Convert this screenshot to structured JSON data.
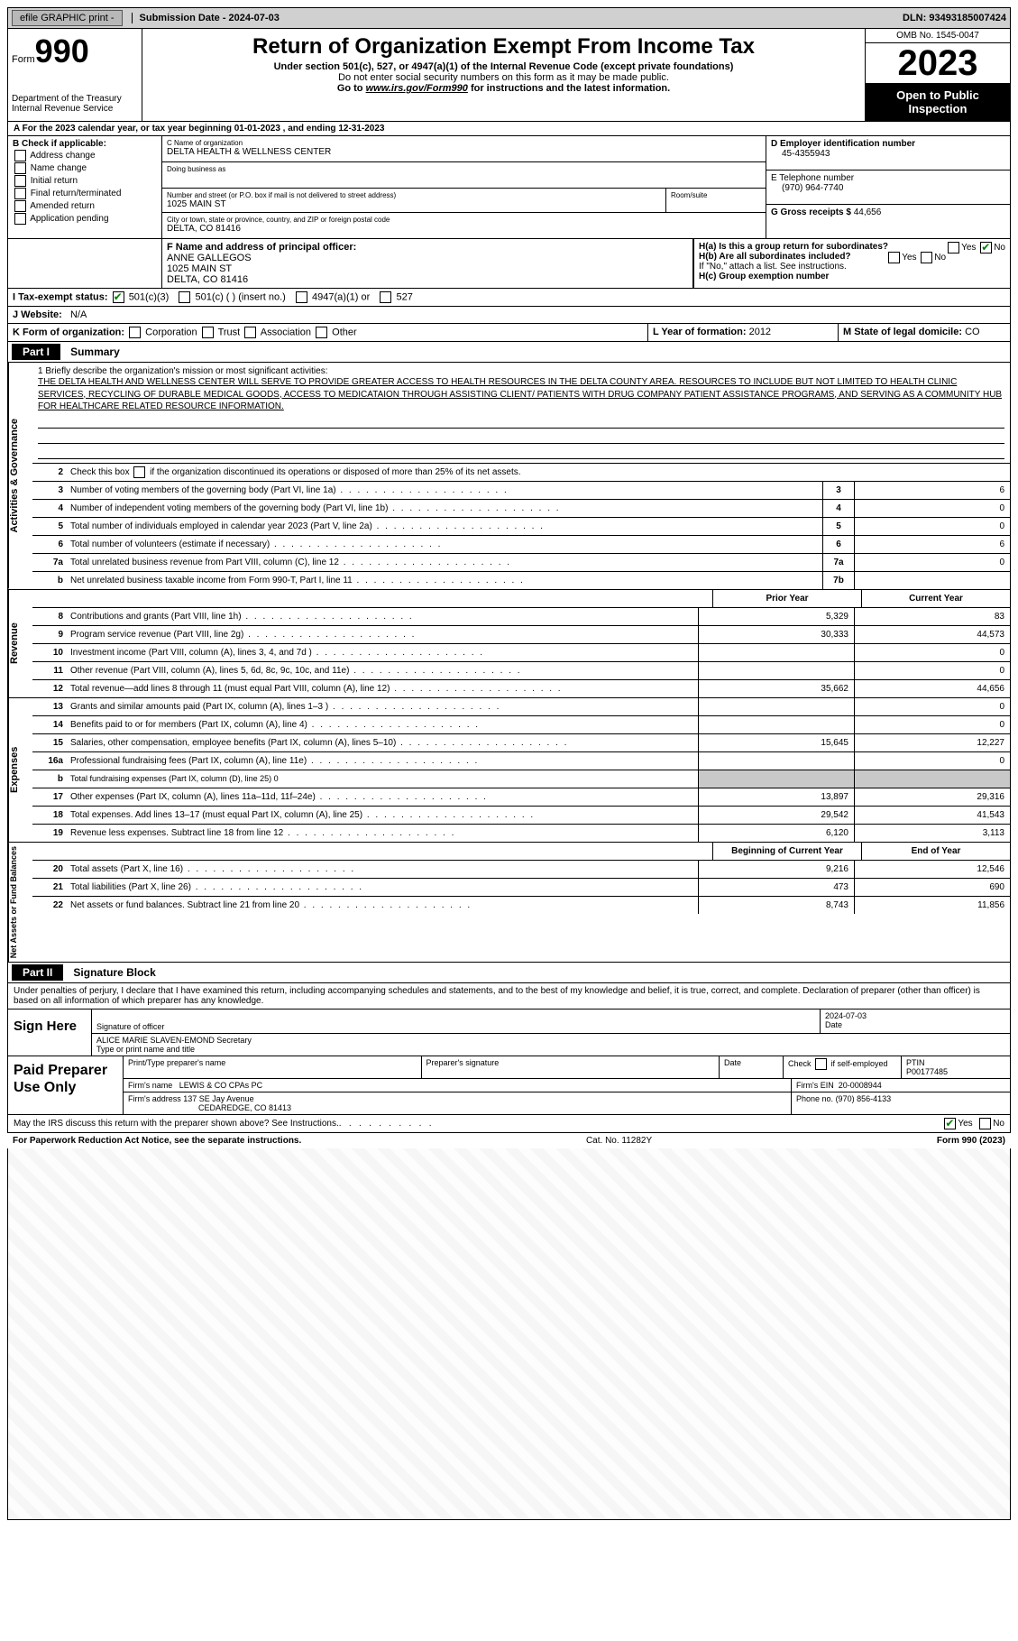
{
  "topbar": {
    "efile": "efile GRAPHIC print -",
    "submission": "Submission Date - 2024-07-03",
    "dln": "DLN: 93493185007424"
  },
  "header": {
    "form_label": "Form",
    "form_number": "990",
    "dept": "Department of the Treasury Internal Revenue Service",
    "title": "Return of Organization Exempt From Income Tax",
    "sub1": "Under section 501(c), 527, or 4947(a)(1) of the Internal Revenue Code (except private foundations)",
    "sub2": "Do not enter social security numbers on this form as it may be made public.",
    "sub3_pre": "Go to ",
    "sub3_link": "www.irs.gov/Form990",
    "sub3_post": " for instructions and the latest information.",
    "omb": "OMB No. 1545-0047",
    "year": "2023",
    "open": "Open to Public Inspection"
  },
  "yearline": "A For the 2023 calendar year, or tax year beginning 01-01-2023   , and ending 12-31-2023",
  "boxB": {
    "label": "B Check if applicable:",
    "opts": [
      "Address change",
      "Name change",
      "Initial return",
      "Final return/terminated",
      "Amended return",
      "Application pending"
    ]
  },
  "boxC": {
    "name_lbl": "C Name of organization",
    "name": "DELTA HEALTH & WELLNESS CENTER",
    "dba_lbl": "Doing business as",
    "addr_lbl": "Number and street (or P.O. box if mail is not delivered to street address)",
    "room_lbl": "Room/suite",
    "addr": "1025 MAIN ST",
    "city_lbl": "City or town, state or province, country, and ZIP or foreign postal code",
    "city": "DELTA, CO  81416"
  },
  "boxD": {
    "ein_lbl": "D Employer identification number",
    "ein": "45-4355943",
    "phone_lbl": "E Telephone number",
    "phone": "(970) 964-7740",
    "gross_lbl": "G Gross receipts $",
    "gross": "44,656"
  },
  "boxF": {
    "lbl": "F Name and address of principal officer:",
    "line1": "ANNE GALLEGOS",
    "line2": "1025 MAIN ST",
    "line3": "DELTA, CO  81416"
  },
  "boxH": {
    "a": "H(a)  Is this a group return for subordinates?",
    "b": "H(b)  Are all subordinates included?",
    "note": "If \"No,\" attach a list. See instructions.",
    "c": "H(c)  Group exemption number",
    "yes": "Yes",
    "no": "No"
  },
  "boxI": {
    "lbl": "I   Tax-exempt status:",
    "opt1": "501(c)(3)",
    "opt2": "501(c) (  ) (insert no.)",
    "opt3": "4947(a)(1) or",
    "opt4": "527"
  },
  "boxJ": {
    "lbl": "J   Website:",
    "val": "N/A"
  },
  "boxK": {
    "lbl": "K Form of organization:",
    "opts": [
      "Corporation",
      "Trust",
      "Association",
      "Other"
    ]
  },
  "boxL": {
    "lbl": "L Year of formation:",
    "val": "2012"
  },
  "boxM": {
    "lbl": "M State of legal domicile:",
    "val": "CO"
  },
  "part1": {
    "hdr": "Part I",
    "title": "Summary"
  },
  "mission": {
    "lbl": "1   Briefly describe the organization's mission or most significant activities:",
    "text": "THE DELTA HEALTH AND WELLNESS CENTER WILL SERVE TO PROVIDE GREATER ACCESS TO HEALTH RESOURCES IN THE DELTA COUNTY AREA. RESOURCES TO INCLUDE BUT NOT LIMITED TO HEALTH CLINIC SERVICES, RECYCLING OF DURABLE MEDICAL GOODS, ACCESS TO MEDICATAION THROUGH ASSISTING CLIENT/ PATIENTS WITH DRUG COMPANY PATIENT ASSISTANCE PROGRAMS, AND SERVING AS A COMMUNITY HUB FOR HEALTHCARE RELATED RESOURCE INFORMATION."
  },
  "gov": {
    "tab": "Activities & Governance",
    "line2": "Check this box       if the organization discontinued its operations or disposed of more than 25% of its net assets.",
    "lines": [
      {
        "n": "3",
        "d": "Number of voting members of the governing body (Part VI, line 1a)",
        "b": "3",
        "v": "6"
      },
      {
        "n": "4",
        "d": "Number of independent voting members of the governing body (Part VI, line 1b)",
        "b": "4",
        "v": "0"
      },
      {
        "n": "5",
        "d": "Total number of individuals employed in calendar year 2023 (Part V, line 2a)",
        "b": "5",
        "v": "0"
      },
      {
        "n": "6",
        "d": "Total number of volunteers (estimate if necessary)",
        "b": "6",
        "v": "6"
      },
      {
        "n": "7a",
        "d": "Total unrelated business revenue from Part VIII, column (C), line 12",
        "b": "7a",
        "v": "0"
      },
      {
        "n": "b",
        "d": "Net unrelated business taxable income from Form 990-T, Part I, line 11",
        "b": "7b",
        "v": ""
      }
    ]
  },
  "rev": {
    "tab": "Revenue",
    "hdr_prior": "Prior Year",
    "hdr_curr": "Current Year",
    "lines": [
      {
        "n": "8",
        "d": "Contributions and grants (Part VIII, line 1h)",
        "p": "5,329",
        "c": "83"
      },
      {
        "n": "9",
        "d": "Program service revenue (Part VIII, line 2g)",
        "p": "30,333",
        "c": "44,573"
      },
      {
        "n": "10",
        "d": "Investment income (Part VIII, column (A), lines 3, 4, and 7d )",
        "p": "",
        "c": "0"
      },
      {
        "n": "11",
        "d": "Other revenue (Part VIII, column (A), lines 5, 6d, 8c, 9c, 10c, and 11e)",
        "p": "",
        "c": "0"
      },
      {
        "n": "12",
        "d": "Total revenue—add lines 8 through 11 (must equal Part VIII, column (A), line 12)",
        "p": "35,662",
        "c": "44,656"
      }
    ]
  },
  "exp": {
    "tab": "Expenses",
    "lines": [
      {
        "n": "13",
        "d": "Grants and similar amounts paid (Part IX, column (A), lines 1–3 )",
        "p": "",
        "c": "0"
      },
      {
        "n": "14",
        "d": "Benefits paid to or for members (Part IX, column (A), line 4)",
        "p": "",
        "c": "0"
      },
      {
        "n": "15",
        "d": "Salaries, other compensation, employee benefits (Part IX, column (A), lines 5–10)",
        "p": "15,645",
        "c": "12,227"
      },
      {
        "n": "16a",
        "d": "Professional fundraising fees (Part IX, column (A), line 11e)",
        "p": "",
        "c": "0"
      },
      {
        "n": "b",
        "d": "Total fundraising expenses (Part IX, column (D), line 25) 0",
        "shade": true
      },
      {
        "n": "17",
        "d": "Other expenses (Part IX, column (A), lines 11a–11d, 11f–24e)",
        "p": "13,897",
        "c": "29,316"
      },
      {
        "n": "18",
        "d": "Total expenses. Add lines 13–17 (must equal Part IX, column (A), line 25)",
        "p": "29,542",
        "c": "41,543"
      },
      {
        "n": "19",
        "d": "Revenue less expenses. Subtract line 18 from line 12",
        "p": "6,120",
        "c": "3,113"
      }
    ]
  },
  "net": {
    "tab": "Net Assets or Fund Balances",
    "hdr_beg": "Beginning of Current Year",
    "hdr_end": "End of Year",
    "lines": [
      {
        "n": "20",
        "d": "Total assets (Part X, line 16)",
        "p": "9,216",
        "c": "12,546"
      },
      {
        "n": "21",
        "d": "Total liabilities (Part X, line 26)",
        "p": "473",
        "c": "690"
      },
      {
        "n": "22",
        "d": "Net assets or fund balances. Subtract line 21 from line 20",
        "p": "8,743",
        "c": "11,856"
      }
    ]
  },
  "part2": {
    "hdr": "Part II",
    "title": "Signature Block"
  },
  "sig": {
    "perjury": "Under penalties of perjury, I declare that I have examined this return, including accompanying schedules and statements, and to the best of my knowledge and belief, it is true, correct, and complete. Declaration of preparer (other than officer) is based on all information of which preparer has any knowledge.",
    "sign_here": "Sign Here",
    "sig_officer": "Signature of officer",
    "date_lbl": "Date",
    "date": "2024-07-03",
    "name": "ALICE MARIE SLAVEN-EMOND Secretary",
    "name_lbl": "Type or print name and title"
  },
  "prep": {
    "title": "Paid Preparer Use Only",
    "print_lbl": "Print/Type preparer's name",
    "sig_lbl": "Preparer's signature",
    "date_lbl": "Date",
    "check_lbl": "Check        if self-employed",
    "ptin_lbl": "PTIN",
    "ptin": "P00177485",
    "firm_name_lbl": "Firm's name",
    "firm_name": "LEWIS & CO CPAs PC",
    "firm_ein_lbl": "Firm's EIN",
    "firm_ein": "20-0008944",
    "firm_addr_lbl": "Firm's address",
    "firm_addr1": "137 SE Jay Avenue",
    "firm_addr2": "CEDAREDGE, CO  81413",
    "phone_lbl": "Phone no.",
    "phone": "(970) 856-4133"
  },
  "discuss": {
    "q": "May the IRS discuss this return with the preparer shown above? See Instructions.",
    "yes": "Yes",
    "no": "No"
  },
  "footer": {
    "left": "For Paperwork Reduction Act Notice, see the separate instructions.",
    "mid": "Cat. No. 11282Y",
    "right": "Form 990 (2023)"
  }
}
